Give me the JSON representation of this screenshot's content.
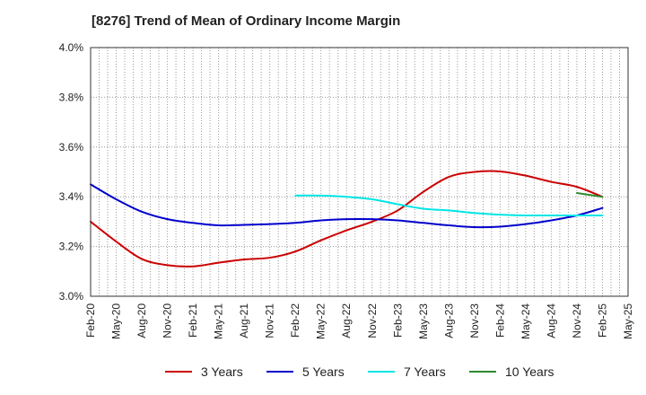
{
  "chart_data": {
    "type": "line",
    "title": "[8276]  Trend of Mean of Ordinary Income Margin",
    "xlabel": "",
    "ylabel": "",
    "ylim": [
      3.0,
      4.0
    ],
    "y_ticks": [
      "3.0%",
      "3.2%",
      "3.4%",
      "3.6%",
      "3.8%",
      "4.0%"
    ],
    "y_tick_values": [
      3.0,
      3.2,
      3.4,
      3.6,
      3.8,
      4.0
    ],
    "x_ticks": [
      "Feb-20",
      "May-20",
      "Aug-20",
      "Nov-20",
      "Feb-21",
      "May-21",
      "Aug-21",
      "Nov-21",
      "Feb-22",
      "May-22",
      "Aug-22",
      "Nov-22",
      "Feb-23",
      "May-23",
      "Aug-23",
      "Nov-23",
      "Feb-24",
      "May-24",
      "Aug-24",
      "Nov-24",
      "Feb-25",
      "May-25"
    ],
    "grid": true,
    "legend_position": "bottom",
    "series": [
      {
        "name": "3 Years",
        "color": "#cc0000",
        "points": [
          [
            "Feb-20",
            3.3
          ],
          [
            "May-20",
            3.22
          ],
          [
            "Aug-20",
            3.15
          ],
          [
            "Nov-20",
            3.125
          ],
          [
            "Feb-21",
            3.12
          ],
          [
            "May-21",
            3.135
          ],
          [
            "Aug-21",
            3.148
          ],
          [
            "Nov-21",
            3.155
          ],
          [
            "Feb-22",
            3.18
          ],
          [
            "May-22",
            3.225
          ],
          [
            "Aug-22",
            3.265
          ],
          [
            "Nov-22",
            3.3
          ],
          [
            "Feb-23",
            3.345
          ],
          [
            "May-23",
            3.42
          ],
          [
            "Aug-23",
            3.48
          ],
          [
            "Nov-23",
            3.5
          ],
          [
            "Feb-24",
            3.502
          ],
          [
            "May-24",
            3.485
          ],
          [
            "Aug-24",
            3.46
          ],
          [
            "Nov-24",
            3.44
          ],
          [
            "Feb-25",
            3.4
          ]
        ]
      },
      {
        "name": "5 Years",
        "color": "#0000cc",
        "points": [
          [
            "Feb-20",
            3.45
          ],
          [
            "May-20",
            3.39
          ],
          [
            "Aug-20",
            3.34
          ],
          [
            "Nov-20",
            3.31
          ],
          [
            "Feb-21",
            3.295
          ],
          [
            "May-21",
            3.285
          ],
          [
            "Aug-21",
            3.287
          ],
          [
            "Nov-21",
            3.29
          ],
          [
            "Feb-22",
            3.295
          ],
          [
            "May-22",
            3.305
          ],
          [
            "Aug-22",
            3.31
          ],
          [
            "Nov-22",
            3.31
          ],
          [
            "Feb-23",
            3.305
          ],
          [
            "May-23",
            3.295
          ],
          [
            "Aug-23",
            3.285
          ],
          [
            "Nov-23",
            3.278
          ],
          [
            "Feb-24",
            3.28
          ],
          [
            "May-24",
            3.29
          ],
          [
            "Aug-24",
            3.305
          ],
          [
            "Nov-24",
            3.325
          ],
          [
            "Feb-25",
            3.355
          ]
        ]
      },
      {
        "name": "7 Years",
        "color": "#00e5e5",
        "points": [
          [
            "Feb-22",
            3.405
          ],
          [
            "May-22",
            3.405
          ],
          [
            "Aug-22",
            3.4
          ],
          [
            "Nov-22",
            3.39
          ],
          [
            "Feb-23",
            3.37
          ],
          [
            "May-23",
            3.352
          ],
          [
            "Aug-23",
            3.345
          ],
          [
            "Nov-23",
            3.335
          ],
          [
            "Feb-24",
            3.328
          ],
          [
            "May-24",
            3.325
          ],
          [
            "Aug-24",
            3.325
          ],
          [
            "Nov-24",
            3.325
          ],
          [
            "Feb-25",
            3.325
          ]
        ]
      },
      {
        "name": "10 Years",
        "color": "#2e8b2e",
        "points": [
          [
            "Nov-24",
            3.415
          ],
          [
            "Feb-25",
            3.4
          ]
        ]
      }
    ]
  }
}
